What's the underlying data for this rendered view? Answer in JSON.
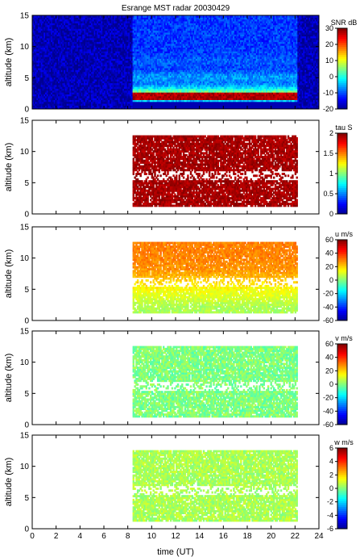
{
  "title": "Esrange MST radar 20030429",
  "xlabel": "time (UT)",
  "colors": {
    "background": "#ffffff",
    "colormap": [
      "#00008f",
      "#0000ff",
      "#0080ff",
      "#00ffff",
      "#80ff80",
      "#ffff00",
      "#ff8000",
      "#ff0000",
      "#800000"
    ]
  },
  "chart_data": [
    {
      "type": "heatmap",
      "title": "Esrange MST radar 20030429",
      "variable": "SNR",
      "colorbar_label": "SNR dB",
      "clim": [
        -20,
        30
      ],
      "colorbar_ticks": [
        -20,
        -10,
        0,
        10,
        20,
        30
      ],
      "xlabel": "",
      "ylabel": "altitude (km)",
      "xlim": [
        0,
        24
      ],
      "ylim": [
        0,
        15
      ],
      "yticks": [
        0,
        5,
        10,
        15
      ],
      "data_coverage_hours": [
        8.3,
        22.2
      ],
      "bands": [
        {
          "altitude_km": 2,
          "value": 25
        },
        {
          "altitude_km": 3,
          "value": 12
        },
        {
          "altitude_km": 5,
          "value": 8
        },
        {
          "altitude_km": 7.5,
          "value": 3
        }
      ]
    },
    {
      "type": "heatmap",
      "variable": "tau",
      "colorbar_label": "tau S",
      "clim": [
        0,
        2
      ],
      "colorbar_ticks": [
        0,
        0.5,
        1,
        1.5,
        2
      ],
      "xlabel": "",
      "ylabel": "altitude (km)",
      "xlim": [
        0,
        24
      ],
      "ylim": [
        0,
        15
      ],
      "yticks": [
        0,
        5,
        10,
        15
      ],
      "data_coverage_hours": [
        8.3,
        22.2
      ],
      "typical_value": 2
    },
    {
      "type": "heatmap",
      "variable": "u",
      "colorbar_label": "u m/s",
      "clim": [
        -60,
        60
      ],
      "colorbar_ticks": [
        -60,
        -40,
        -20,
        0,
        20,
        40,
        60
      ],
      "xlabel": "",
      "ylabel": "altitude (km)",
      "xlim": [
        0,
        24
      ],
      "ylim": [
        0,
        15
      ],
      "yticks": [
        0,
        5,
        10,
        15
      ],
      "data_coverage_hours": [
        8.3,
        22.2
      ],
      "profile": [
        {
          "altitude_km": 2,
          "value": 5
        },
        {
          "altitude_km": 5,
          "value": 15
        },
        {
          "altitude_km": 8,
          "value": 28
        },
        {
          "altitude_km": 11,
          "value": 30
        }
      ]
    },
    {
      "type": "heatmap",
      "variable": "v",
      "colorbar_label": "v m/s",
      "clim": [
        -60,
        60
      ],
      "colorbar_ticks": [
        -60,
        -40,
        -20,
        0,
        20,
        40,
        60
      ],
      "xlabel": "",
      "ylabel": "altitude (km)",
      "xlim": [
        0,
        24
      ],
      "ylim": [
        0,
        15
      ],
      "yticks": [
        0,
        5,
        10,
        15
      ],
      "data_coverage_hours": [
        8.3,
        22.2
      ],
      "typical_value": 0
    },
    {
      "type": "heatmap",
      "variable": "w",
      "colorbar_label": "w m/s",
      "clim": [
        -6,
        6
      ],
      "colorbar_ticks": [
        -6,
        -4,
        -2,
        0,
        2,
        4,
        6
      ],
      "xlabel": "time (UT)",
      "ylabel": "altitude (km)",
      "xlim": [
        0,
        24
      ],
      "ylim": [
        0,
        15
      ],
      "yticks": [
        0,
        5,
        10,
        15
      ],
      "xticks": [
        0,
        2,
        4,
        6,
        8,
        10,
        12,
        14,
        16,
        18,
        20,
        22,
        24
      ],
      "data_coverage_hours": [
        8.3,
        22.2
      ],
      "typical_value": 0.5
    }
  ]
}
